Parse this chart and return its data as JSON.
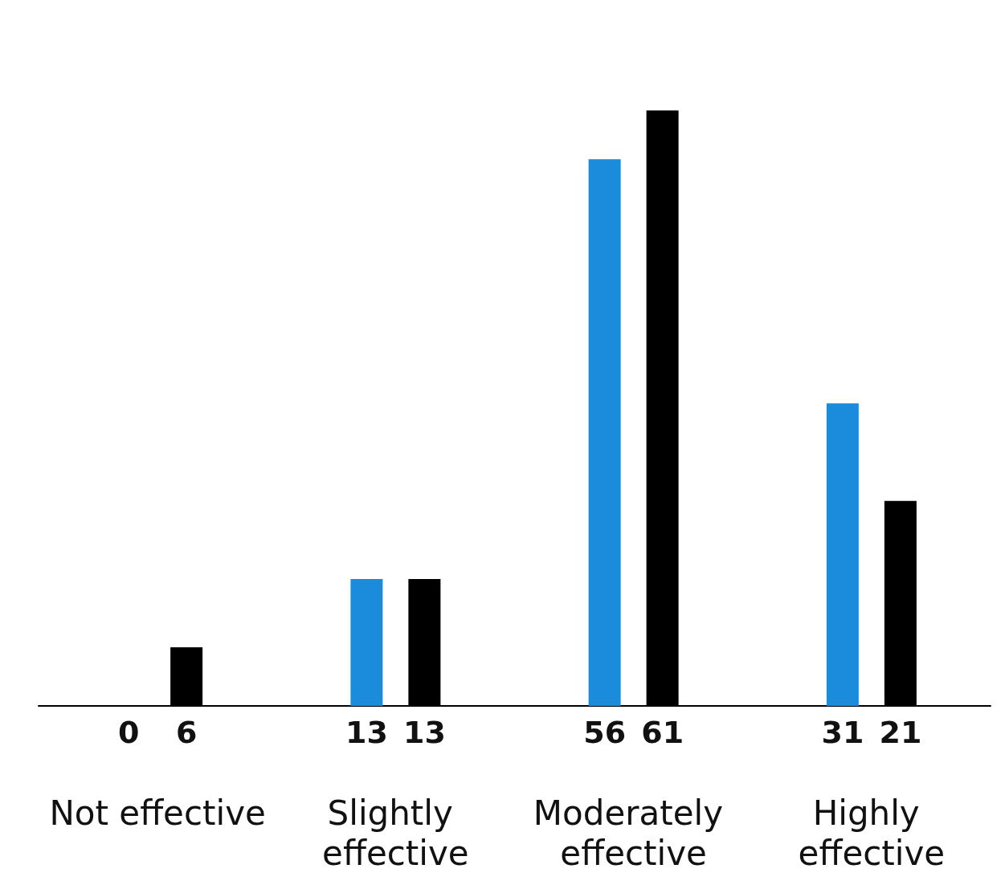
{
  "chart_data": {
    "type": "bar",
    "categories": [
      "Not effective",
      "Slightly effective",
      "Moderately effective",
      "Highly effective"
    ],
    "series": [
      {
        "color": "#1a8cdb",
        "values": [
          0,
          13,
          56,
          31
        ]
      },
      {
        "color": "#000000",
        "values": [
          6,
          13,
          61,
          21
        ]
      }
    ],
    "data_labels": true,
    "grid": false
  }
}
